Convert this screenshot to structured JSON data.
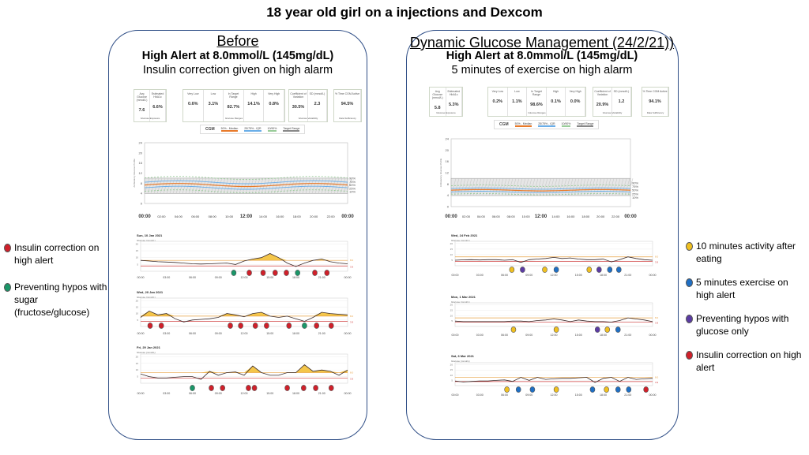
{
  "title": "18 year old girl on a injections and Dexcom",
  "colors": {
    "insulin": "#d0202a",
    "sugar": "#1a9668",
    "activity": "#f0c020",
    "exercise": "#1f6fc4",
    "glucose_only": "#5b3ba3",
    "panel_border": "#2f4e86",
    "high_fill": "#f4c64a",
    "high_line": "#e8a040",
    "low_line": "#d04040"
  },
  "left_legend": [
    {
      "label": "Insulin correction on high alert",
      "marker": "insulin"
    },
    {
      "label": "Preventing hypos with sugar (fructose/glucose)",
      "marker": "sugar"
    }
  ],
  "right_legend": [
    {
      "label": "10 minutes activity after eating",
      "marker": "activity"
    },
    {
      "label": "5 minutes exercise on high alert",
      "marker": "exercise"
    },
    {
      "label": "Preventing hypos with glucose only",
      "marker": "glucose_only"
    },
    {
      "label": "Insulin correction on high alert",
      "marker": "insulin"
    }
  ],
  "panels": [
    {
      "heading": "Before",
      "subheading": "High Alert at 8.0mmol/L (145mg/dL)",
      "note": "Insulin correction given on high alarm",
      "stats": [
        {
          "group": "Glucose Exposure",
          "cells": [
            {
              "label": "Avg Glucose (mmol/L)",
              "value": "7.6"
            },
            {
              "label": "Estimated HbA1c",
              "value": "6.6%"
            }
          ]
        },
        {
          "group": "Glucose Ranges",
          "cells": [
            {
              "label": "Very Low",
              "value": "0.6%"
            },
            {
              "label": "Low",
              "value": "3.1%"
            },
            {
              "label": "In Target Range",
              "value": "82.7%"
            },
            {
              "label": "High",
              "value": "14.1%"
            },
            {
              "label": "Very High",
              "value": "0.8%"
            }
          ]
        },
        {
          "group": "Glucose Variability",
          "cells": [
            {
              "label": "Coefficient of Variation",
              "value": "30.5%"
            },
            {
              "label": "SD (mmol/L)",
              "value": "2.3"
            }
          ]
        },
        {
          "group": "Data Sufficiency",
          "cells": [
            {
              "label": "% Time CGM Active",
              "value": "94.5%"
            }
          ]
        }
      ],
      "days": [
        {
          "date": "Sun, 10 Jan 2021",
          "glucose": [
            8,
            7.5,
            7,
            6.8,
            6.5,
            6,
            5.5,
            5.3,
            5.5,
            5.8,
            6,
            5,
            7.5,
            9,
            10,
            13,
            10,
            6,
            3.5,
            6,
            8,
            9,
            7,
            6,
            5.5
          ],
          "markers": [
            {
              "t": 10.8,
              "type": "sugar"
            },
            {
              "t": 12.6,
              "type": "insulin"
            },
            {
              "t": 14.2,
              "type": "insulin"
            },
            {
              "t": 15.6,
              "type": "insulin"
            },
            {
              "t": 16.9,
              "type": "insulin"
            },
            {
              "t": 18.2,
              "type": "sugar"
            },
            {
              "t": 20.2,
              "type": "insulin"
            },
            {
              "t": 21.6,
              "type": "insulin"
            }
          ]
        },
        {
          "date": "Wed, 20 Jan 2021",
          "glucose": [
            7,
            12,
            9,
            10,
            6,
            3.5,
            5,
            5.5,
            6,
            7,
            10,
            9,
            7.5,
            10,
            11,
            8,
            7,
            8,
            6,
            4,
            7,
            11,
            10,
            9.5,
            9
          ],
          "markers": [
            {
              "t": 1.1,
              "type": "insulin"
            },
            {
              "t": 2.4,
              "type": "insulin"
            },
            {
              "t": 10.4,
              "type": "insulin"
            },
            {
              "t": 11.6,
              "type": "insulin"
            },
            {
              "t": 13.3,
              "type": "insulin"
            },
            {
              "t": 14.6,
              "type": "insulin"
            },
            {
              "t": 17.2,
              "type": "insulin"
            },
            {
              "t": 19.0,
              "type": "sugar"
            },
            {
              "t": 20.4,
              "type": "insulin"
            },
            {
              "t": 22.1,
              "type": "insulin"
            }
          ]
        },
        {
          "date": "Fri, 29 Jan 2021",
          "glucose": [
            7,
            5,
            4,
            4,
            4.5,
            5,
            5,
            3,
            9,
            6,
            8,
            8.5,
            6,
            13,
            8,
            6,
            6,
            8,
            8,
            14,
            9,
            10,
            9,
            6,
            10
          ],
          "markers": [
            {
              "t": 6.0,
              "type": "sugar"
            },
            {
              "t": 8.2,
              "type": "insulin"
            },
            {
              "t": 9.5,
              "type": "insulin"
            },
            {
              "t": 12.5,
              "type": "insulin"
            },
            {
              "t": 13.2,
              "type": "insulin"
            },
            {
              "t": 17.0,
              "type": "insulin"
            },
            {
              "t": 18.9,
              "type": "insulin"
            },
            {
              "t": 20.3,
              "type": "insulin"
            },
            {
              "t": 22.1,
              "type": "insulin"
            }
          ]
        }
      ]
    },
    {
      "heading": "Dynamic Glucose Management (24/2/21))",
      "subheading": "High Alert at 8.0mmol/L (145mg/dL)",
      "note": "5 minutes of exercise on high alarm",
      "stats": [
        {
          "group": "Glucose Exposure",
          "cells": [
            {
              "label": "Avg Glucose (mmol/L)",
              "value": "5.8"
            },
            {
              "label": "Estimated HbA1c",
              "value": "5.3%"
            }
          ]
        },
        {
          "group": "Glucose Ranges",
          "cells": [
            {
              "label": "Very Low",
              "value": "0.2%"
            },
            {
              "label": "Low",
              "value": "1.1%"
            },
            {
              "label": "In Target Range",
              "value": "98.6%"
            },
            {
              "label": "High",
              "value": "0.1%"
            },
            {
              "label": "Very High",
              "value": "0.0%"
            }
          ]
        },
        {
          "group": "Glucose Variability",
          "cells": [
            {
              "label": "Coefficient of Variation",
              "value": "20.9%"
            },
            {
              "label": "SD (mmol/L)",
              "value": "1.2"
            }
          ]
        },
        {
          "group": "Data Sufficiency",
          "cells": [
            {
              "label": "% Time CGM Active",
              "value": "94.1%"
            }
          ]
        }
      ],
      "days": [
        {
          "date": "Wed, 24 Feb 2021",
          "glucose": [
            5,
            5.3,
            5.5,
            5.2,
            5.5,
            5.5,
            5,
            5.5,
            3,
            5.5,
            6,
            6.5,
            7.5,
            6.5,
            7,
            6,
            5.5,
            5.5,
            6,
            3.5,
            5.5,
            8,
            6.5,
            5.5,
            5
          ],
          "markers": [
            {
              "t": 6.9,
              "type": "activity"
            },
            {
              "t": 8.2,
              "type": "glucose_only"
            },
            {
              "t": 10.9,
              "type": "activity"
            },
            {
              "t": 12.3,
              "type": "exercise"
            },
            {
              "t": 16.3,
              "type": "activity"
            },
            {
              "t": 17.5,
              "type": "glucose_only"
            },
            {
              "t": 18.8,
              "type": "exercise"
            },
            {
              "t": 19.9,
              "type": "exercise"
            }
          ]
        },
        {
          "date": "Mon, 1 Mar 2021",
          "glucose": [
            5,
            4.5,
            4.5,
            4.5,
            4.5,
            4.5,
            4.5,
            5,
            5,
            4.5,
            5.5,
            6,
            7,
            6,
            4.5,
            6,
            5,
            4.5,
            4.5,
            4,
            5.5,
            8,
            7,
            6,
            4.5
          ],
          "markers": [
            {
              "t": 7.1,
              "type": "activity"
            },
            {
              "t": 12.3,
              "type": "activity"
            },
            {
              "t": 17.3,
              "type": "glucose_only"
            },
            {
              "t": 18.5,
              "type": "activity"
            },
            {
              "t": 19.8,
              "type": "exercise"
            }
          ]
        },
        {
          "date": "Sat, 6 Mar 2021",
          "glucose": [
            4.5,
            3.5,
            4,
            4.5,
            4.5,
            5,
            5.5,
            4,
            8,
            5,
            8,
            6,
            6.5,
            7,
            7,
            7.5,
            8,
            3,
            7,
            8,
            4,
            8,
            6,
            6.5,
            7
          ],
          "markers": [
            {
              "t": 6.3,
              "type": "activity"
            },
            {
              "t": 7.7,
              "type": "exercise"
            },
            {
              "t": 9.4,
              "type": "exercise"
            },
            {
              "t": 12.3,
              "type": "activity"
            },
            {
              "t": 16.7,
              "type": "exercise"
            },
            {
              "t": 18.4,
              "type": "activity"
            },
            {
              "t": 19.8,
              "type": "exercise"
            },
            {
              "t": 21.1,
              "type": "exercise"
            },
            {
              "t": 23.2,
              "type": "insulin"
            }
          ]
        }
      ]
    }
  ],
  "cgm_legend": {
    "title": "CGM",
    "median": "50% - Median",
    "iqr": "25/75% - IQR",
    "p10_90": "10/90%",
    "target": "Target Range"
  },
  "agp": {
    "times": [
      "00:00",
      "02:00",
      "04:00",
      "06:00",
      "08:00",
      "10:00",
      "12:00",
      "14:00",
      "16:00",
      "18:00",
      "20:00",
      "22:00",
      "00:00"
    ],
    "y_ticks": [
      "0",
      "4",
      "8",
      "12",
      "16",
      "20",
      "24"
    ],
    "percentiles": [
      "90%",
      "75%",
      "50%",
      "25%",
      "10%"
    ],
    "ylabel": "Ambulatory Glucose Profile"
  },
  "daily": {
    "times": [
      "00:00",
      "03:00",
      "06:00",
      "09:00",
      "12:00",
      "15:00",
      "18:00",
      "21:00",
      "00:00"
    ],
    "ylabel": "Glucose (mmol/L)",
    "y_ticks": [
      "5",
      "10",
      "15",
      "20"
    ],
    "high_label": "8.0",
    "low_label": "3.9"
  }
}
